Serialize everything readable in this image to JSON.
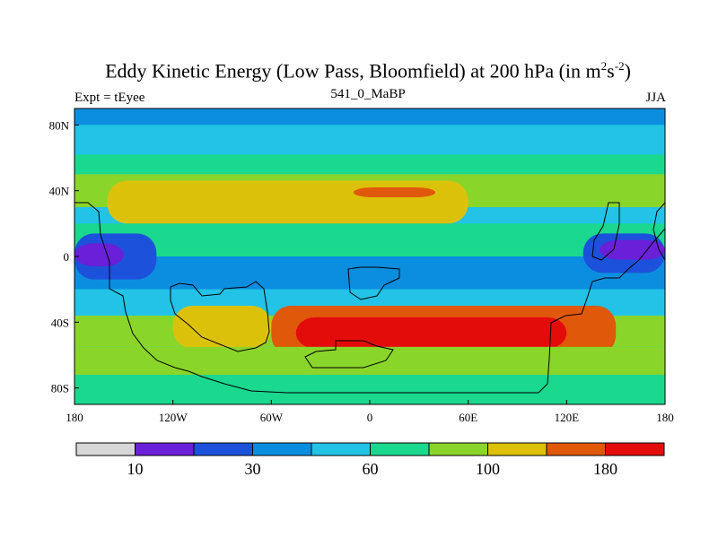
{
  "chart_data": {
    "type": "heatmap",
    "title": "Eddy Kinetic Energy (Low Pass, Bloomfield) at 200 hPa (in m",
    "title_units_sup1": "2",
    "title_units_mid": "s",
    "title_units_sup2": "-2",
    "title_close": ")",
    "left_label": "Expt = tEyee",
    "center_label": "541_0_MaBP",
    "right_label": "JJA",
    "x_ticks": [
      "180",
      "120W",
      "60W",
      "0",
      "60E",
      "120E",
      "180"
    ],
    "y_ticks": [
      "80N",
      "40N",
      "0",
      "40S",
      "80S"
    ],
    "xlim": [
      -180,
      180
    ],
    "ylim": [
      -90,
      90
    ],
    "colorbar": {
      "colors": [
        "#d7d7d7",
        "#6a1fd8",
        "#1c52db",
        "#0b8ee0",
        "#22c3e6",
        "#1ad88e",
        "#8ad52a",
        "#dcc10a",
        "#e0580a",
        "#e40b0b"
      ],
      "labels": [
        {
          "text": "10",
          "index": 1
        },
        {
          "text": "30",
          "index": 3
        },
        {
          "text": "60",
          "index": 5
        },
        {
          "text": "100",
          "index": 7
        },
        {
          "text": "180",
          "index": 9
        }
      ]
    },
    "bands": [
      {
        "level": 3,
        "lat_range": [
          80,
          90
        ]
      },
      {
        "level": 4,
        "lat_range": [
          62,
          80
        ]
      },
      {
        "level": 5,
        "lat_range": [
          50,
          62
        ]
      },
      {
        "level": 6,
        "lat_range": [
          30,
          50
        ]
      },
      {
        "level": 7,
        "lat_range": [
          20,
          46
        ],
        "lon_range": [
          -160,
          60
        ]
      },
      {
        "level": 8,
        "lat_range": [
          36,
          42
        ],
        "lon_range": [
          -10,
          40
        ]
      },
      {
        "level": 5,
        "lat_range": [
          0,
          20
        ]
      },
      {
        "level": 3,
        "lat_range": [
          -20,
          0
        ]
      },
      {
        "level": 2,
        "lat_range": [
          -14,
          14
        ],
        "lon_range": [
          -180,
          -130
        ]
      },
      {
        "level": 1,
        "lat_range": [
          -6,
          8
        ],
        "lon_range": [
          -180,
          -150
        ]
      },
      {
        "level": 2,
        "lat_range": [
          -10,
          14
        ],
        "lon_range": [
          130,
          180
        ]
      },
      {
        "level": 1,
        "lat_range": [
          -2,
          10
        ],
        "lon_range": [
          140,
          180
        ]
      },
      {
        "level": 4,
        "lat_range": [
          -36,
          -20
        ]
      },
      {
        "level": 6,
        "lat_range": [
          -55,
          -36
        ]
      },
      {
        "level": 7,
        "lat_range": [
          -56,
          -30
        ],
        "lon_range": [
          -120,
          -60
        ]
      },
      {
        "level": 8,
        "lat_range": [
          -60,
          -30
        ],
        "lon_range": [
          -60,
          150
        ]
      },
      {
        "level": 9,
        "lat_range": [
          -56,
          -37
        ],
        "lon_range": [
          -45,
          120
        ]
      },
      {
        "level": 6,
        "lat_range": [
          -72,
          -55
        ]
      },
      {
        "level": 5,
        "lat_range": [
          -90,
          -72
        ]
      }
    ]
  }
}
